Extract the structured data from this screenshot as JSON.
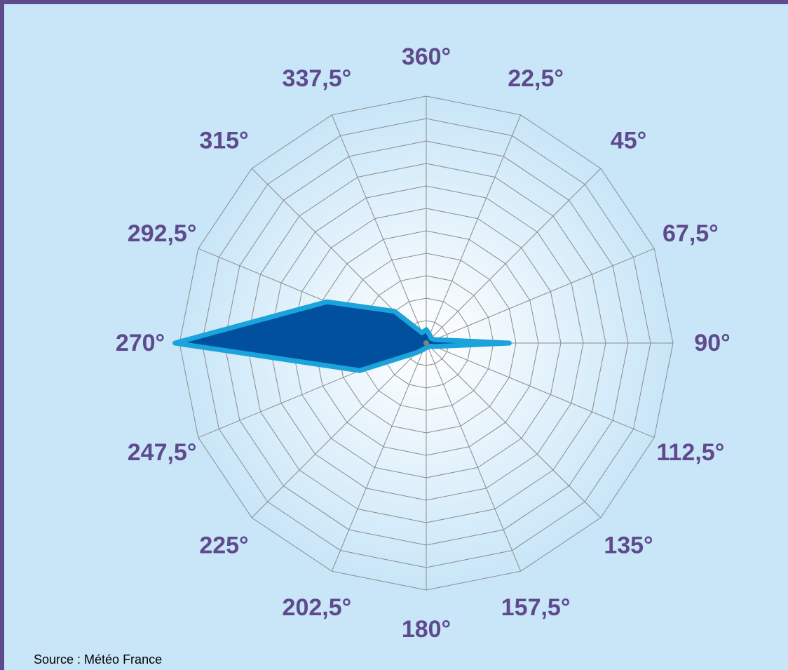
{
  "chart_data": {
    "type": "radar",
    "title": "",
    "directions": [
      "360°",
      "22,5°",
      "45°",
      "67,5°",
      "90°",
      "112,5°",
      "135°",
      "157,5°",
      "180°",
      "202,5°",
      "225°",
      "247,5°",
      "270°",
      "292,5°",
      "315°",
      "337,5°"
    ],
    "rings": 11,
    "r_max": 11,
    "series": [
      {
        "values": [
          0.6,
          0.4,
          0.3,
          0.4,
          3.7,
          0.4,
          0.2,
          0.2,
          0.2,
          0.3,
          0.6,
          3.2,
          11.2,
          4.8,
          2.0,
          0.5
        ]
      }
    ],
    "colors": {
      "fill": "#00509e",
      "outline": "#1ba3dc",
      "grid": "#8c8c8c",
      "labels": "#5e4a8c",
      "background": "#c8e6f8"
    },
    "source": "Source : Météo France"
  }
}
